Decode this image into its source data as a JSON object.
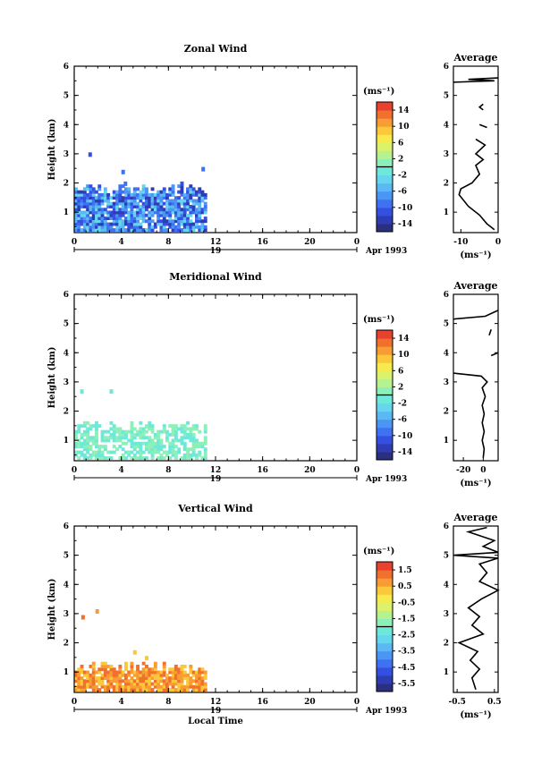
{
  "figure": {
    "date_label": "Apr 1993",
    "day_label": "19",
    "xlabel": "Local Time",
    "x_ticks": [
      "0",
      "4",
      "8",
      "12",
      "16",
      "20",
      "0"
    ],
    "colorbar_unit": "(ms⁻¹)",
    "average_title": "Average",
    "average_xlabel": "(ms⁻¹)"
  },
  "colors": {
    "jet": [
      "#2b2f80",
      "#2f3db5",
      "#3550e0",
      "#3f72f2",
      "#4b95f5",
      "#5ab8f2",
      "#66d6ee",
      "#6ee8d8",
      "#8df0b8",
      "#b6f28f",
      "#dcf26b",
      "#f6ea4d",
      "#fbc83b",
      "#f89d33",
      "#f1702e",
      "#e8412d"
    ]
  },
  "chart_data": [
    {
      "type": "heatmap",
      "title": "Zonal Wind",
      "ylabel": "Height (km)",
      "xlim": [
        0,
        24
      ],
      "ylim": [
        0.3,
        6
      ],
      "y_ticks": [
        "1",
        "2",
        "3",
        "4",
        "5",
        "6"
      ],
      "colorbar_ticks": [
        "14",
        "10",
        "6",
        "2",
        "-2",
        "-6",
        "-10",
        "-14"
      ],
      "colorbar_range": [
        -16,
        16
      ],
      "data_extent_hours": [
        0,
        11.2
      ],
      "typical_value_range": [
        -14,
        -2
      ],
      "average": {
        "xlim": [
          -12,
          0
        ],
        "x_ticks": [
          "-10",
          "0"
        ],
        "profile": [
          [
            -1,
            0.4
          ],
          [
            -3,
            0.6
          ],
          [
            -5,
            0.9
          ],
          [
            -8,
            1.2
          ],
          [
            -10.5,
            1.6
          ],
          [
            -10,
            1.8
          ],
          [
            -7,
            2.0
          ],
          [
            -5,
            2.3
          ],
          [
            -6,
            2.6
          ],
          [
            -4,
            2.8
          ],
          [
            -6,
            3.0
          ],
          [
            -3.5,
            3.3
          ],
          [
            -6,
            3.5
          ]
        ],
        "extra_segments": [
          [
            [
              -3,
              3.9
            ],
            [
              -5,
              4.0
            ]
          ],
          [
            [
              -4,
              4.5
            ],
            [
              -5,
              4.6
            ],
            [
              -4,
              4.7
            ]
          ],
          [
            [
              -12,
              5.45
            ],
            [
              -1,
              5.5
            ],
            [
              -8,
              5.55
            ],
            [
              0,
              5.6
            ]
          ]
        ]
      }
    },
    {
      "type": "heatmap",
      "title": "Meridional Wind",
      "ylabel": "Height (km)",
      "xlim": [
        0,
        24
      ],
      "ylim": [
        0.3,
        6
      ],
      "y_ticks": [
        "1",
        "2",
        "3",
        "4",
        "5",
        "6"
      ],
      "colorbar_ticks": [
        "14",
        "10",
        "6",
        "2",
        "-2",
        "-6",
        "-10",
        "-14"
      ],
      "colorbar_range": [
        -16,
        16
      ],
      "data_extent_hours": [
        0,
        11.2
      ],
      "typical_value_range": [
        -2,
        2
      ],
      "average": {
        "xlim": [
          -30,
          15
        ],
        "x_ticks": [
          "-20",
          "0"
        ],
        "profile": [
          [
            0,
            0.4
          ],
          [
            1,
            0.7
          ],
          [
            -1,
            1.0
          ],
          [
            1,
            1.3
          ],
          [
            -1,
            1.6
          ],
          [
            1,
            1.9
          ],
          [
            -1,
            2.2
          ],
          [
            2,
            2.5
          ],
          [
            -1,
            2.8
          ],
          [
            4,
            3.0
          ],
          [
            -2,
            3.2
          ],
          [
            -30,
            3.3
          ]
        ],
        "extra_segments": [
          [
            [
              8,
              3.9
            ],
            [
              15,
              4.0
            ]
          ],
          [
            [
              6,
              4.6
            ],
            [
              8,
              4.8
            ]
          ],
          [
            [
              -30,
              5.15
            ],
            [
              2,
              5.25
            ],
            [
              15,
              5.45
            ]
          ]
        ]
      }
    },
    {
      "type": "heatmap",
      "title": "Vertical Wind",
      "ylabel": "Height (km)",
      "xlim": [
        0,
        24
      ],
      "ylim": [
        0.3,
        6
      ],
      "y_ticks": [
        "1",
        "2",
        "3",
        "4",
        "5",
        "6"
      ],
      "colorbar_ticks": [
        "1.5",
        "0.5",
        "-0.5",
        "-1.5",
        "-2.5",
        "-3.5",
        "-4.5",
        "-5.5"
      ],
      "colorbar_range": [
        -6,
        2
      ],
      "data_extent_hours": [
        0,
        11.2
      ],
      "typical_value_range": [
        0,
        1.5
      ],
      "average": {
        "xlim": [
          -0.6,
          0.6
        ],
        "x_ticks": [
          "-0.5",
          "0.5"
        ],
        "profile": [
          [
            0,
            0.4
          ],
          [
            -0.1,
            0.8
          ],
          [
            0.1,
            1.1
          ],
          [
            -0.15,
            1.4
          ],
          [
            0.05,
            1.7
          ],
          [
            -0.45,
            2.0
          ],
          [
            0.2,
            2.3
          ],
          [
            -0.1,
            2.6
          ],
          [
            0.1,
            2.9
          ],
          [
            -0.2,
            3.2
          ],
          [
            0.15,
            3.5
          ],
          [
            0.6,
            3.8
          ],
          [
            0.1,
            4.1
          ],
          [
            0.3,
            4.4
          ],
          [
            0.1,
            4.7
          ],
          [
            0.6,
            4.9
          ],
          [
            -0.6,
            5.0
          ],
          [
            0.6,
            5.1
          ],
          [
            0.2,
            5.3
          ],
          [
            0.5,
            5.5
          ],
          [
            -0.2,
            5.8
          ],
          [
            0.3,
            5.95
          ]
        ],
        "extra_segments": []
      }
    }
  ]
}
